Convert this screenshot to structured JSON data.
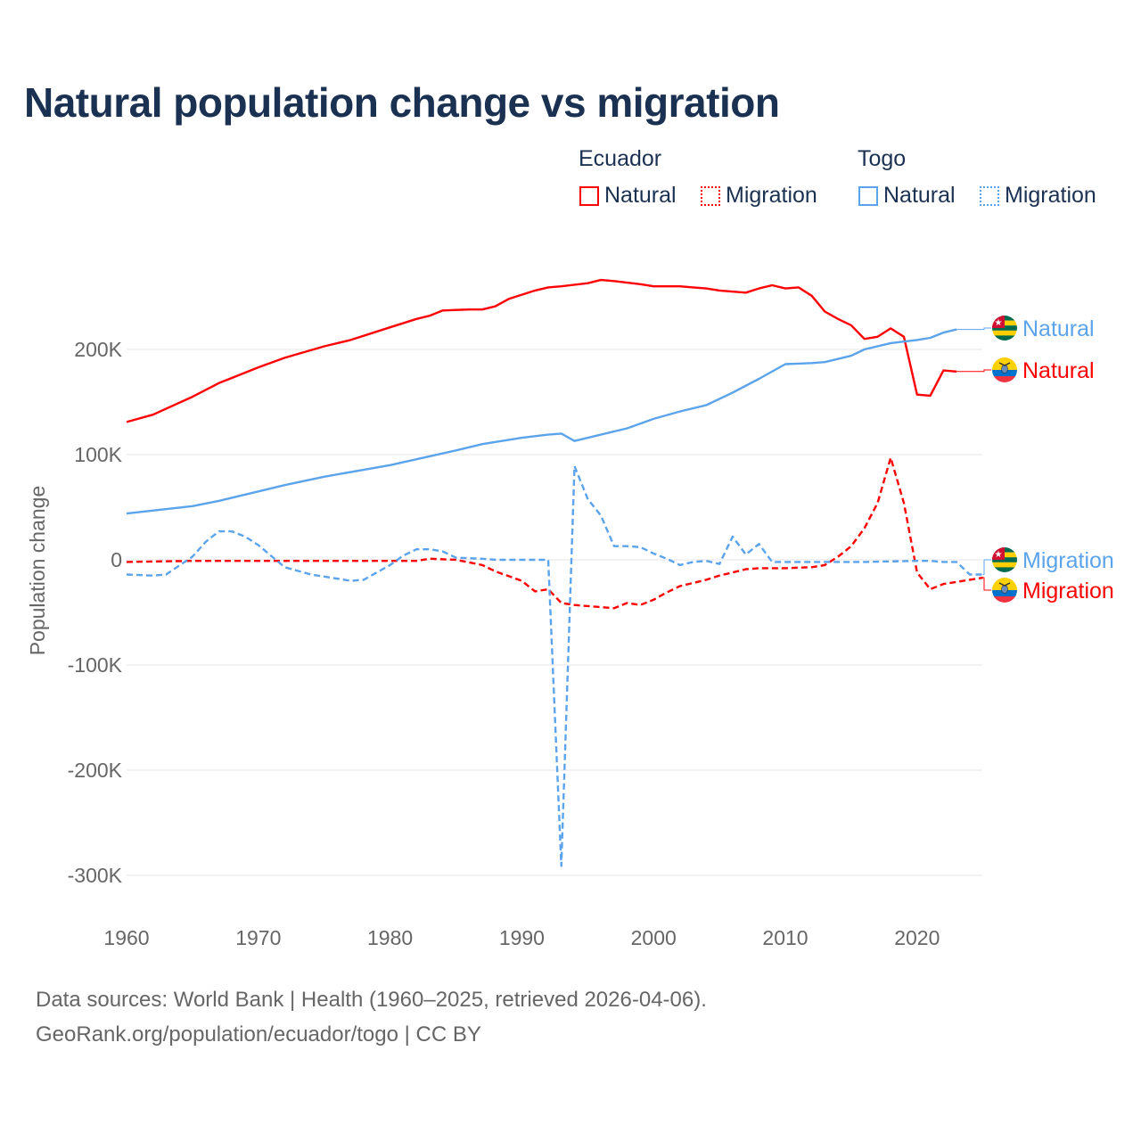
{
  "chart_data": {
    "type": "line",
    "title": "Natural population change vs migration",
    "xlabel": "",
    "ylabel": "Population change",
    "xlim": [
      1960,
      2025
    ],
    "ylim": [
      -330000,
      290000
    ],
    "x_ticks": [
      "1960",
      "1970",
      "1980",
      "1990",
      "2000",
      "2010",
      "2020"
    ],
    "y_ticks": [
      {
        "v": 200000,
        "label": "200K"
      },
      {
        "v": 100000,
        "label": "100K"
      },
      {
        "v": 0,
        "label": "0"
      },
      {
        "v": -100000,
        "label": "-100K"
      },
      {
        "v": -200000,
        "label": "-200K"
      },
      {
        "v": -300000,
        "label": "-300K"
      }
    ],
    "grid": true,
    "legend": {
      "placement": "top-right",
      "groups": [
        {
          "country": "Ecuador",
          "items": [
            "Natural",
            "Migration"
          ]
        },
        {
          "country": "Togo",
          "items": [
            "Natural",
            "Migration"
          ]
        }
      ]
    },
    "series": [
      {
        "name": "Ecuador Natural",
        "country": "Ecuador",
        "kind": "Natural",
        "label": "Natural",
        "color": "#ff0000",
        "dashed": false,
        "x": [
          1960,
          1962,
          1965,
          1967,
          1970,
          1972,
          1975,
          1977,
          1980,
          1982,
          1983,
          1984,
          1986,
          1987,
          1988,
          1989,
          1991,
          1992,
          1993,
          1995,
          1996,
          1997,
          1999,
          2000,
          2002,
          2003,
          2004,
          2005,
          2007,
          2008,
          2009,
          2010,
          2011,
          2012,
          2013,
          2014,
          2015,
          2016,
          2017,
          2018,
          2019,
          2020,
          2021,
          2022,
          2023
        ],
        "y": [
          131,
          138,
          155,
          168,
          183,
          192,
          203,
          209,
          221,
          229,
          232,
          237,
          238,
          238,
          241,
          248,
          256,
          259,
          260,
          263,
          266,
          265,
          262,
          260,
          260,
          259,
          258,
          256,
          254,
          258,
          261,
          258,
          259,
          251,
          236,
          229,
          223,
          210,
          212,
          220,
          212,
          157,
          156,
          180,
          179
        ]
      },
      {
        "name": "Ecuador Migration",
        "country": "Ecuador",
        "kind": "Migration",
        "label": "Migration",
        "color": "#ff0000",
        "dashed": true,
        "x": [
          1960,
          1965,
          1970,
          1975,
          1980,
          1982,
          1983,
          1985,
          1987,
          1988,
          1990,
          1991,
          1992,
          1993,
          1994,
          1997,
          1998,
          1999,
          2000,
          2001,
          2002,
          2003,
          2004,
          2005,
          2006,
          2007,
          2008,
          2010,
          2012,
          2013,
          2014,
          2015,
          2016,
          2017,
          2018,
          2019,
          2020,
          2021,
          2022,
          2023,
          2024,
          2025
        ],
        "y": [
          -2,
          -1,
          -1,
          -1,
          -1,
          -1,
          1,
          0,
          -5,
          -11,
          -20,
          -30,
          -28,
          -41,
          -43,
          -46,
          -41,
          -43,
          -38,
          -31,
          -25,
          -22,
          -19,
          -15,
          -12,
          -9,
          -8,
          -8,
          -7,
          -5,
          3,
          13,
          30,
          54,
          97,
          54,
          -12,
          -28,
          -23,
          -21,
          -19,
          -17
        ]
      },
      {
        "name": "Togo Natural",
        "country": "Togo",
        "kind": "Natural",
        "label": "Natural",
        "color": "#5ba4ec",
        "dashed": false,
        "x": [
          1960,
          1965,
          1967,
          1970,
          1972,
          1975,
          1980,
          1985,
          1987,
          1990,
          1992,
          1993,
          1994,
          1996,
          1998,
          2000,
          2002,
          2004,
          2006,
          2008,
          2010,
          2012,
          2013,
          2015,
          2016,
          2018,
          2020,
          2021,
          2022,
          2023
        ],
        "y": [
          44,
          51,
          56,
          65,
          71,
          79,
          90,
          104,
          110,
          116,
          119,
          120,
          113,
          119,
          125,
          134,
          141,
          147,
          159,
          172,
          186,
          187,
          188,
          194,
          200,
          206,
          209,
          211,
          216,
          219
        ]
      },
      {
        "name": "Togo Migration",
        "country": "Togo",
        "kind": "Migration",
        "label": "Migration",
        "color": "#5ba4ec",
        "dashed": true,
        "x": [
          1960,
          1962,
          1963,
          1965,
          1966,
          1967,
          1968,
          1969,
          1970,
          1972,
          1974,
          1976,
          1977,
          1978,
          1980,
          1981,
          1982,
          1983,
          1984,
          1985,
          1987,
          1988,
          1992,
          1993,
          1994,
          1995,
          1996,
          1997,
          1998,
          1999,
          2000,
          2001,
          2002,
          2003,
          2004,
          2005,
          2006,
          2007,
          2008,
          2009,
          2012,
          2016,
          2020,
          2021,
          2022,
          2023,
          2024,
          2025
        ],
        "y": [
          -14,
          -15,
          -14,
          3,
          17,
          27,
          27,
          22,
          14,
          -7,
          -14,
          -18,
          -20,
          -19,
          -5,
          4,
          10,
          10,
          8,
          2,
          1,
          0,
          0,
          -291,
          89,
          58,
          42,
          13,
          13,
          12,
          6,
          1,
          -5,
          -2,
          -1,
          -4,
          22,
          5,
          15,
          -2,
          -2,
          -2,
          -1,
          -1,
          -2,
          -2,
          -14,
          -14
        ]
      }
    ],
    "y_units": "thousands"
  },
  "footer": {
    "line1": "Data sources: World Bank | Health (1960–2025, retrieved 2026-04-06).",
    "line2": "GeoRank.org/population/ecuador/togo | CC BY"
  }
}
